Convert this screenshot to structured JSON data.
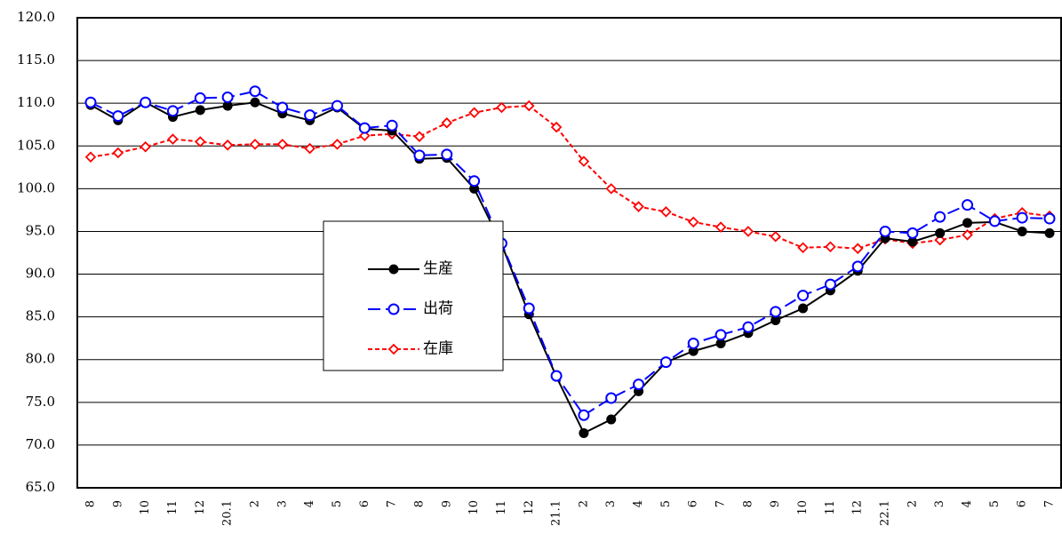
{
  "chart_data": {
    "type": "line",
    "categories": [
      "8",
      "9",
      "10",
      "11",
      "12",
      "20.1",
      "2",
      "3",
      "4",
      "5",
      "6",
      "7",
      "8",
      "9",
      "10",
      "11",
      "12",
      "21.1",
      "2",
      "3",
      "4",
      "5",
      "6",
      "7",
      "8",
      "9",
      "10",
      "11",
      "12",
      "22.1",
      "2",
      "3",
      "4",
      "5",
      "6",
      "7"
    ],
    "series": [
      {
        "name": "生産",
        "color": "#000000",
        "marker": "filled-circle",
        "dash": "solid",
        "values": [
          109.8,
          108.0,
          110.1,
          108.4,
          109.2,
          109.7,
          110.1,
          108.8,
          108.0,
          109.5,
          107.0,
          106.8,
          103.5,
          103.6,
          100.0,
          93.5,
          85.3,
          78.0,
          71.4,
          73.0,
          76.3,
          79.7,
          81.0,
          81.9,
          83.1,
          84.6,
          86.0,
          88.1,
          90.4,
          94.2,
          93.8,
          94.8,
          96.0,
          96.1,
          95.0,
          94.8
        ]
      },
      {
        "name": "出荷",
        "color": "#0000ff",
        "marker": "circle",
        "dash": "dashed",
        "values": [
          110.1,
          108.5,
          110.1,
          109.1,
          110.6,
          110.7,
          111.4,
          109.5,
          108.6,
          109.7,
          107.1,
          107.4,
          103.9,
          104.0,
          100.9,
          93.6,
          86.0,
          78.1,
          73.5,
          75.5,
          77.1,
          79.7,
          81.9,
          82.9,
          83.8,
          85.6,
          87.5,
          88.8,
          90.9,
          95.0,
          94.8,
          96.7,
          98.1,
          96.2,
          96.6,
          96.5
        ]
      },
      {
        "name": "在庫",
        "color": "#ff0000",
        "marker": "diamond",
        "dash": "dotted",
        "values": [
          103.7,
          104.2,
          104.9,
          105.8,
          105.5,
          105.1,
          105.2,
          105.2,
          104.7,
          105.2,
          106.2,
          106.4,
          106.1,
          107.7,
          108.9,
          109.5,
          109.7,
          107.2,
          103.2,
          100.0,
          97.9,
          97.3,
          96.1,
          95.5,
          95.0,
          94.4,
          93.1,
          93.2,
          93.0,
          94.1,
          93.6,
          94.0,
          94.6,
          96.5,
          97.2,
          96.8
        ]
      }
    ],
    "ylim": [
      65,
      120
    ],
    "yticks": [
      {
        "value": 65,
        "label": "65.0"
      },
      {
        "value": 70,
        "label": "70.0"
      },
      {
        "value": 75,
        "label": "75.0"
      },
      {
        "value": 80,
        "label": "80.0"
      },
      {
        "value": 85,
        "label": "85.0"
      },
      {
        "value": 90,
        "label": "90.0"
      },
      {
        "value": 95,
        "label": "95.0"
      },
      {
        "value": 100,
        "label": "100.0"
      },
      {
        "value": 105,
        "label": "105.0"
      },
      {
        "value": 110,
        "label": "110.0"
      },
      {
        "value": 115,
        "label": "115.0"
      },
      {
        "value": 120,
        "label": "120.0"
      }
    ],
    "grid": true
  }
}
